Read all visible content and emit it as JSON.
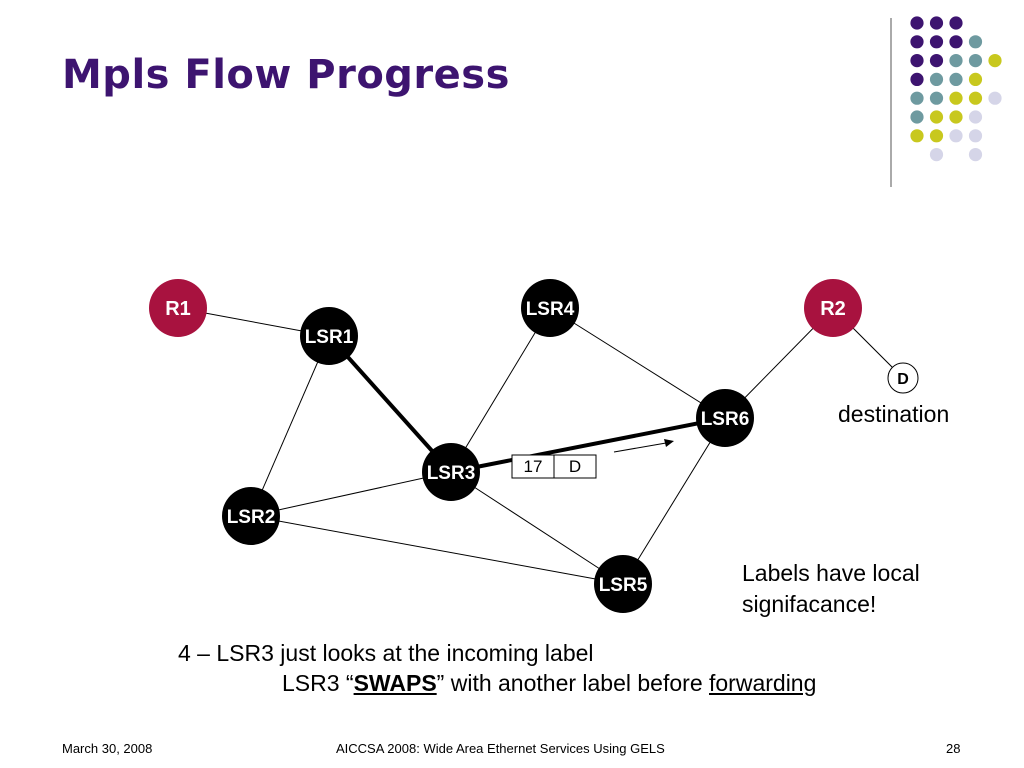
{
  "slide": {
    "title": "Mpls Flow Progress"
  },
  "nodes": [
    {
      "id": "R1",
      "label": "R1",
      "kind": "router",
      "color": "#a8123f"
    },
    {
      "id": "R2",
      "label": "R2",
      "kind": "router",
      "color": "#a8123f"
    },
    {
      "id": "LSR1",
      "label": "LSR1",
      "kind": "lsr",
      "color": "#000000"
    },
    {
      "id": "LSR2",
      "label": "LSR2",
      "kind": "lsr",
      "color": "#000000"
    },
    {
      "id": "LSR3",
      "label": "LSR3",
      "kind": "lsr",
      "color": "#000000"
    },
    {
      "id": "LSR4",
      "label": "LSR4",
      "kind": "lsr",
      "color": "#000000"
    },
    {
      "id": "LSR5",
      "label": "LSR5",
      "kind": "lsr",
      "color": "#000000"
    },
    {
      "id": "LSR6",
      "label": "LSR6",
      "kind": "lsr",
      "color": "#000000"
    },
    {
      "id": "D",
      "label": "D",
      "kind": "destination",
      "color": "#ffffff"
    }
  ],
  "links": [
    {
      "from": "R1",
      "to": "LSR1",
      "active": false
    },
    {
      "from": "LSR1",
      "to": "LSR2",
      "active": false
    },
    {
      "from": "LSR1",
      "to": "LSR3",
      "active": true
    },
    {
      "from": "LSR3",
      "to": "LSR4",
      "active": false
    },
    {
      "from": "LSR3",
      "to": "LSR6",
      "active": true
    },
    {
      "from": "LSR3",
      "to": "LSR2",
      "active": false
    },
    {
      "from": "LSR3",
      "to": "LSR5",
      "active": false
    },
    {
      "from": "LSR4",
      "to": "LSR6",
      "active": false
    },
    {
      "from": "LSR6",
      "to": "R2",
      "active": false
    },
    {
      "from": "LSR6",
      "to": "LSR5",
      "active": false
    },
    {
      "from": "LSR2",
      "to": "LSR5",
      "active": false
    },
    {
      "from": "R2",
      "to": "D",
      "active": false
    }
  ],
  "packet": {
    "label_value": "17",
    "payload": "D"
  },
  "annotations": {
    "destination": "destination",
    "note_line1": "Labels have local",
    "note_line2": "signifacance!",
    "step_prefix": "4 – LSR3 just looks at the incoming label",
    "step_line2_a": "LSR3 “",
    "step_line2_b": "SWAPS",
    "step_line2_c": "” with another label before ",
    "step_line2_d": "forwarding"
  },
  "footer": {
    "date": "March 30, 2008",
    "center": "AICCSA 2008: Wide Area Ethernet Services Using GELS",
    "page": "28"
  },
  "theme": {
    "title_color": "#3d1470",
    "dot_colors": [
      "#3d1470",
      "#6e9aa0",
      "#c8c81e",
      "#d5d5e8"
    ]
  }
}
